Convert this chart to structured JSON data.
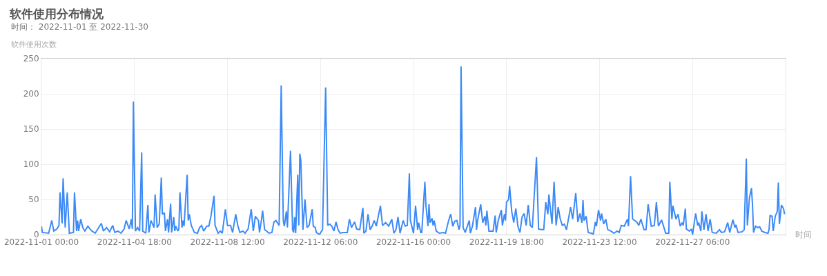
{
  "chart_data": {
    "type": "line",
    "title": "软件使用分布情况",
    "subtitle": "时间： 2022-11-01 至 2022-11-30",
    "ylabel": "软件使用次数",
    "xlabel": "时间",
    "xlim": [
      "2022-11-01T00:00",
      "2022-12-01T00:00"
    ],
    "xticks": [
      {
        "value": "2022-11-01T00:00",
        "label": "2022-11-01 00:00"
      },
      {
        "value": "2022-11-04T18:00",
        "label": "2022-11-04 18:00"
      },
      {
        "value": "2022-11-08T12:00",
        "label": "2022-11-08 12:00"
      },
      {
        "value": "2022-11-12T06:00",
        "label": "2022-11-12 06:00"
      },
      {
        "value": "2022-11-16T00:00",
        "label": "2022-11-16 00:00"
      },
      {
        "value": "2022-11-19T18:00",
        "label": "2022-11-19 18:00"
      },
      {
        "value": "2022-11-23T12:00",
        "label": "2022-11-23 12:00"
      },
      {
        "value": "2022-11-27T06:00",
        "label": "2022-11-27 06:00"
      }
    ],
    "ylim": [
      0,
      250
    ],
    "yticks": [
      0,
      50,
      100,
      150,
      200,
      250
    ],
    "grid": true,
    "marker": "none",
    "line_style": "solid",
    "x": [
      "2022-11-01T00:00",
      "2022-11-01T01:00",
      "2022-11-01T07:00",
      "2022-11-01T10:00",
      "2022-11-01T12:00",
      "2022-11-01T15:00",
      "2022-11-01T17:00",
      "2022-11-01T18:00",
      "2022-11-01T20:00",
      "2022-11-01T21:00",
      "2022-11-01T23:00",
      "2022-11-02T01:00",
      "2022-11-02T03:00",
      "2022-11-02T07:00",
      "2022-11-02T08:00",
      "2022-11-02T10:00",
      "2022-11-02T11:00",
      "2022-11-02T12:00",
      "2022-11-02T14:00",
      "2022-11-02T16:00",
      "2022-11-02T18:00",
      "2022-11-02T21:00",
      "2022-11-02T23:00",
      "2022-11-03T01:00",
      "2022-11-03T04:00",
      "2022-11-03T10:00",
      "2022-11-03T12:00",
      "2022-11-03T15:00",
      "2022-11-03T18:00",
      "2022-11-03T21:00",
      "2022-11-03T23:00",
      "2022-11-04T02:00",
      "2022-11-04T05:00",
      "2022-11-04T08:00",
      "2022-11-04T10:00",
      "2022-11-04T13:00",
      "2022-11-04T15:00",
      "2022-11-04T16:00",
      "2022-11-04T17:00",
      "2022-11-04T19:00",
      "2022-11-04T21:00",
      "2022-11-04T23:00",
      "2022-11-05T01:00",
      "2022-11-05T02:00",
      "2022-11-05T05:00",
      "2022-11-05T07:00",
      "2022-11-05T08:00",
      "2022-11-05T10:00",
      "2022-11-05T13:00",
      "2022-11-05T14:00",
      "2022-11-05T16:00",
      "2022-11-05T18:00",
      "2022-11-05T20:00",
      "2022-11-05T21:00",
      "2022-11-05T23:00",
      "2022-11-06T00:00",
      "2022-11-06T02:00",
      "2022-11-06T03:00",
      "2022-11-06T05:00",
      "2022-11-06T06:00",
      "2022-11-06T08:00",
      "2022-11-06T09:00",
      "2022-11-06T10:00",
      "2022-11-06T12:00",
      "2022-11-06T13:00",
      "2022-11-06T14:00",
      "2022-11-06T16:00",
      "2022-11-06T17:00",
      "2022-11-06T18:00",
      "2022-11-06T21:00",
      "2022-11-06T22:00",
      "2022-11-06T23:00",
      "2022-11-07T01:00",
      "2022-11-07T04:00",
      "2022-11-07T07:00",
      "2022-11-07T09:00",
      "2022-11-07T11:00",
      "2022-11-07T13:00",
      "2022-11-07T16:00",
      "2022-11-07T18:00",
      "2022-11-07T20:00",
      "2022-11-07T23:00",
      "2022-11-08T00:00",
      "2022-11-08T03:00",
      "2022-11-08T05:00",
      "2022-11-08T07:00",
      "2022-11-08T10:00",
      "2022-11-08T12:00",
      "2022-11-08T15:00",
      "2022-11-08T17:00",
      "2022-11-08T20:00",
      "2022-11-08T22:00",
      "2022-11-09T00:00",
      "2022-11-09T03:00",
      "2022-11-09T05:00",
      "2022-11-09T08:00",
      "2022-11-09T11:00",
      "2022-11-09T13:00",
      "2022-11-09T15:00",
      "2022-11-09T18:00",
      "2022-11-09T19:00",
      "2022-11-09T21:00",
      "2022-11-09T22:00",
      "2022-11-10T00:00",
      "2022-11-10T02:00",
      "2022-11-10T04:00",
      "2022-11-10T07:00",
      "2022-11-10T09:00",
      "2022-11-10T11:00",
      "2022-11-10T14:00",
      "2022-11-10T16:00",
      "2022-11-10T18:00",
      "2022-11-10T19:00",
      "2022-11-10T21:00",
      "2022-11-10T22:00",
      "2022-11-11T01:00",
      "2022-11-11T03:00",
      "2022-11-11T04:00",
      "2022-11-11T05:00",
      "2022-11-11T06:00",
      "2022-11-11T08:00",
      "2022-11-11T09:00",
      "2022-11-11T10:00",
      "2022-11-11T11:00",
      "2022-11-11T13:00",
      "2022-11-11T15:00",
      "2022-11-11T17:00",
      "2022-11-11T19:00",
      "2022-11-11T22:00",
      "2022-11-11T23:00",
      "2022-11-12T01:00",
      "2022-11-12T02:00",
      "2022-11-12T05:00",
      "2022-11-12T08:00",
      "2022-11-12T11:00",
      "2022-11-12T13:00",
      "2022-11-12T15:00",
      "2022-11-12T17:00",
      "2022-11-12T19:00",
      "2022-11-12T21:00",
      "2022-11-12T23:00",
      "2022-11-13T01:00",
      "2022-11-13T04:00",
      "2022-11-13T08:00",
      "2022-11-13T10:00",
      "2022-11-13T12:00",
      "2022-11-13T15:00",
      "2022-11-13T17:00",
      "2022-11-13T20:00",
      "2022-11-13T23:00",
      "2022-11-14T00:00",
      "2022-11-14T02:00",
      "2022-11-14T04:00",
      "2022-11-14T06:00",
      "2022-11-14T08:00",
      "2022-11-14T10:00",
      "2022-11-14T12:00",
      "2022-11-14T16:00",
      "2022-11-14T18:00",
      "2022-11-14T21:00",
      "2022-11-15T00:00",
      "2022-11-15T03:00",
      "2022-11-15T05:00",
      "2022-11-15T07:00",
      "2022-11-15T09:00",
      "2022-11-15T11:00",
      "2022-11-15T14:00",
      "2022-11-15T16:00",
      "2022-11-15T18:00",
      "2022-11-15T20:00",
      "2022-11-15T21:00",
      "2022-11-16T00:00",
      "2022-11-16T02:00",
      "2022-11-16T04:00",
      "2022-11-16T05:00",
      "2022-11-16T07:00",
      "2022-11-16T08:00",
      "2022-11-16T11:00",
      "2022-11-16T12:00",
      "2022-11-16T14:00",
      "2022-11-16T15:00",
      "2022-11-16T16:00",
      "2022-11-16T18:00",
      "2022-11-16T19:00",
      "2022-11-16T20:00",
      "2022-11-16T22:00",
      "2022-11-17T01:00",
      "2022-11-17T05:00",
      "2022-11-17T07:00",
      "2022-11-17T10:00",
      "2022-11-17T12:00",
      "2022-11-17T14:00",
      "2022-11-17T16:00",
      "2022-11-17T18:00",
      "2022-11-17T20:00",
      "2022-11-17T21:00",
      "2022-11-17T22:00",
      "2022-11-18T00:00",
      "2022-11-18T02:00",
      "2022-11-18T06:00",
      "2022-11-18T07:00",
      "2022-11-18T09:00",
      "2022-11-18T12:00",
      "2022-11-18T13:00",
      "2022-11-18T14:00",
      "2022-11-18T17:00",
      "2022-11-18T19:00",
      "2022-11-18T21:00",
      "2022-11-18T22:00",
      "2022-11-18T23:00",
      "2022-11-19T01:00",
      "2022-11-19T05:00",
      "2022-11-19T07:00",
      "2022-11-19T08:00",
      "2022-11-19T10:00",
      "2022-11-19T13:00",
      "2022-11-19T14:00",
      "2022-11-19T16:00",
      "2022-11-19T17:00",
      "2022-11-19T18:00",
      "2022-11-19T20:00",
      "2022-11-19T21:00",
      "2022-11-19T23:00",
      "2022-11-20T01:00",
      "2022-11-20T03:00",
      "2022-11-20T05:00",
      "2022-11-20T07:00",
      "2022-11-20T09:00",
      "2022-11-20T11:00",
      "2022-11-20T13:00",
      "2022-11-20T15:00",
      "2022-11-20T17:00",
      "2022-11-20T19:00",
      "2022-11-20T23:00",
      "2022-11-21T01:00",
      "2022-11-21T04:00",
      "2022-11-21T06:00",
      "2022-11-21T08:00",
      "2022-11-21T10:00",
      "2022-11-21T11:00",
      "2022-11-21T14:00",
      "2022-11-21T16:00",
      "2022-11-21T18:00",
      "2022-11-21T20:00",
      "2022-11-21T22:00",
      "2022-11-22T00:00",
      "2022-11-22T02:00",
      "2022-11-22T04:00",
      "2022-11-22T08:00",
      "2022-11-22T10:00",
      "2022-11-22T13:00",
      "2022-11-22T15:00",
      "2022-11-22T17:00",
      "2022-11-22T19:00",
      "2022-11-22T20:00",
      "2022-11-22T21:00",
      "2022-11-22T23:00",
      "2022-11-23T01:00",
      "2022-11-23T04:00",
      "2022-11-23T06:00",
      "2022-11-23T08:00",
      "2022-11-23T09:00",
      "2022-11-23T11:00",
      "2022-11-23T13:00",
      "2022-11-23T14:00",
      "2022-11-23T16:00",
      "2022-11-23T18:00",
      "2022-11-23T20:00",
      "2022-11-23T23:00",
      "2022-11-24T02:00",
      "2022-11-24T05:00",
      "2022-11-24T07:00",
      "2022-11-24T09:00",
      "2022-11-24T12:00",
      "2022-11-24T15:00",
      "2022-11-24T16:00",
      "2022-11-24T18:00",
      "2022-11-24T20:00",
      "2022-11-25T00:00",
      "2022-11-25T02:00",
      "2022-11-25T04:00",
      "2022-11-25T07:00",
      "2022-11-25T09:00",
      "2022-11-25T11:00",
      "2022-11-25T14:00",
      "2022-11-25T15:00",
      "2022-11-25T17:00",
      "2022-11-25T19:00",
      "2022-11-25T21:00",
      "2022-11-26T00:00",
      "2022-11-26T04:00",
      "2022-11-26T07:00",
      "2022-11-26T08:00",
      "2022-11-26T10:00",
      "2022-11-26T11:00",
      "2022-11-26T14:00",
      "2022-11-26T16:00",
      "2022-11-26T18:00",
      "2022-11-26T20:00",
      "2022-11-26T21:00",
      "2022-11-26T23:00",
      "2022-11-27T00:00",
      "2022-11-27T03:00",
      "2022-11-27T05:00",
      "2022-11-27T06:00",
      "2022-11-27T09:00",
      "2022-11-27T11:00",
      "2022-11-27T12:00",
      "2022-11-27T14:00",
      "2022-11-27T15:00",
      "2022-11-27T17:00",
      "2022-11-27T19:00",
      "2022-11-27T21:00",
      "2022-11-27T23:00",
      "2022-11-28T01:00",
      "2022-11-28T05:00",
      "2022-11-28T08:00",
      "2022-11-28T10:00",
      "2022-11-28T13:00",
      "2022-11-28T16:00",
      "2022-11-28T18:00",
      "2022-11-28T21:00",
      "2022-11-28T23:00",
      "2022-11-29T00:00",
      "2022-11-29T02:00",
      "2022-11-29T06:00",
      "2022-11-29T08:00",
      "2022-11-29T10:00",
      "2022-11-29T11:00",
      "2022-11-29T13:00",
      "2022-11-29T15:00",
      "2022-11-29T16:00",
      "2022-11-29T17:00",
      "2022-11-29T19:00",
      "2022-11-29T21:00",
      "2022-11-29T23:00",
      "2022-11-30T01:00",
      "2022-11-30T04:00",
      "2022-11-30T07:00",
      "2022-11-30T08:00",
      "2022-11-30T09:00",
      "2022-11-30T11:00",
      "2022-11-30T12:00",
      "2022-11-30T14:00",
      "2022-11-30T16:00",
      "2022-11-30T17:00",
      "2022-11-30T18:00",
      "2022-11-30T20:00",
      "2022-11-30T22:00",
      "2022-11-30T23:00"
    ],
    "series": [
      {
        "color": "#3d8af7",
        "values": [
          12,
          3,
          2,
          20,
          5,
          8,
          13,
          60,
          16,
          80,
          10,
          60,
          2,
          3,
          60,
          5,
          20,
          5,
          22,
          10,
          5,
          12,
          8,
          5,
          2,
          16,
          5,
          10,
          4,
          13,
          3,
          5,
          2,
          8,
          20,
          8,
          22,
          8,
          189,
          5,
          10,
          5,
          117,
          5,
          2,
          42,
          3,
          20,
          10,
          57,
          10,
          15,
          81,
          29,
          31,
          5,
          22,
          3,
          44,
          3,
          25,
          5,
          12,
          5,
          8,
          60,
          10,
          20,
          12,
          85,
          20,
          29,
          13,
          3,
          2,
          10,
          13,
          5,
          12,
          12,
          26,
          55,
          13,
          2,
          5,
          2,
          36,
          13,
          13,
          3,
          29,
          13,
          3,
          5,
          2,
          8,
          36,
          5,
          26,
          20,
          3,
          22,
          34,
          7,
          5,
          2,
          3,
          18,
          20,
          13,
          212,
          20,
          12,
          33,
          10,
          119,
          7,
          3,
          25,
          2,
          85,
          13,
          115,
          105,
          7,
          50,
          10,
          13,
          36,
          12,
          10,
          3,
          0,
          7,
          209,
          13,
          15,
          12,
          5,
          18,
          7,
          2,
          3,
          3,
          22,
          10,
          18,
          8,
          7,
          38,
          2,
          5,
          29,
          7,
          12,
          20,
          12,
          41,
          13,
          17,
          12,
          22,
          2,
          7,
          25,
          2,
          20,
          12,
          13,
          87,
          20,
          2,
          41,
          7,
          17,
          3,
          3,
          75,
          42,
          12,
          43,
          17,
          23,
          13,
          20,
          5,
          2,
          3,
          2,
          20,
          29,
          12,
          19,
          20,
          7,
          13,
          239,
          10,
          3,
          20,
          2,
          12,
          39,
          7,
          20,
          43,
          17,
          26,
          13,
          34,
          5,
          5,
          27,
          3,
          20,
          35,
          13,
          29,
          20,
          46,
          50,
          69,
          33,
          17,
          37,
          12,
          3,
          25,
          30,
          13,
          42,
          13,
          10,
          110,
          8,
          7,
          7,
          46,
          29,
          57,
          15,
          75,
          13,
          39,
          22,
          13,
          15,
          7,
          39,
          22,
          59,
          18,
          30,
          17,
          49,
          20,
          26,
          3,
          2,
          1,
          18,
          12,
          35,
          20,
          30,
          15,
          22,
          7,
          5,
          2,
          5,
          3,
          13,
          12,
          22,
          12,
          83,
          22,
          18,
          13,
          22,
          7,
          7,
          43,
          12,
          12,
          13,
          46,
          12,
          21,
          2,
          2,
          75,
          22,
          41,
          22,
          29,
          12,
          17,
          13,
          37,
          8,
          5,
          8,
          0,
          30,
          13,
          17,
          5,
          33,
          7,
          29,
          5,
          22,
          3,
          2,
          7,
          3,
          4,
          17,
          3,
          21,
          10,
          14,
          3,
          4,
          7,
          108,
          13,
          52,
          66,
          42,
          3,
          12,
          10,
          11,
          5,
          3,
          2,
          7,
          27,
          26,
          5,
          26,
          33,
          74,
          15,
          42,
          37,
          29
        ]
      }
    ]
  }
}
